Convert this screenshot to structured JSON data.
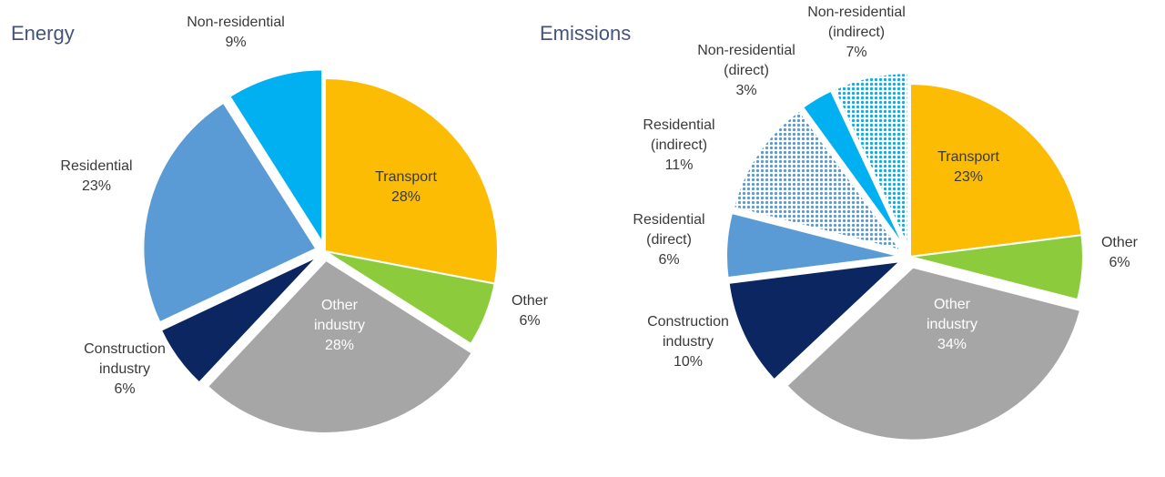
{
  "charts": [
    {
      "title": "Energy",
      "chart_data": {
        "type": "pie",
        "title": "Energy",
        "start_angle_deg": 0,
        "slices": [
          {
            "label": "Transport",
            "value_label": "28%",
            "value": 28,
            "color": "#fcbc03",
            "exploded": false,
            "label_inside": true
          },
          {
            "label": "Other",
            "value_label": "6%",
            "value": 6,
            "color": "#8ccb3c",
            "exploded": false,
            "label_inside": false
          },
          {
            "label": "Other industry",
            "label_lines": [
              "Other",
              "industry"
            ],
            "value_label": "28%",
            "value": 28,
            "color": "#a6a6a6",
            "exploded": true,
            "label_inside": true
          },
          {
            "label": "Construction industry",
            "label_lines": [
              "Construction",
              "industry"
            ],
            "value_label": "6%",
            "value": 6,
            "color": "#0b2661",
            "exploded": true,
            "label_inside": false
          },
          {
            "label": "Residential",
            "value_label": "23%",
            "value": 23,
            "color": "#5b9bd5",
            "exploded": true,
            "label_inside": false
          },
          {
            "label": "Non-residential",
            "value_label": "9%",
            "value": 9,
            "color": "#00b0f0",
            "exploded": true,
            "label_inside": false
          }
        ]
      }
    },
    {
      "title": "Emissions",
      "chart_data": {
        "type": "pie",
        "title": "Emissions",
        "start_angle_deg": 0,
        "slices": [
          {
            "label": "Transport",
            "value_label": "23%",
            "value": 23,
            "color": "#fcbc03",
            "exploded": false,
            "label_inside": true
          },
          {
            "label": "Other",
            "value_label": "6%",
            "value": 6,
            "color": "#8ccb3c",
            "exploded": false,
            "label_inside": false
          },
          {
            "label": "Other industry",
            "label_lines": [
              "Other",
              "industry"
            ],
            "value_label": "34%",
            "value": 34,
            "color": "#a6a6a6",
            "exploded": true,
            "label_inside": true
          },
          {
            "label": "Construction industry",
            "label_lines": [
              "Construction",
              "industry"
            ],
            "value_label": "10%",
            "value": 10,
            "color": "#0b2661",
            "exploded": true,
            "label_inside": false
          },
          {
            "label": "Residential (direct)",
            "label_lines": [
              "Residential",
              "(direct)"
            ],
            "value_label": "6%",
            "value": 6,
            "color": "#5b9bd5",
            "exploded": true,
            "label_inside": false
          },
          {
            "label": "Residential (indirect)",
            "label_lines": [
              "Residential",
              "(indirect)"
            ],
            "value_label": "11%",
            "value": 11,
            "color": "#5b9bd5",
            "pattern": "dots",
            "exploded": true,
            "label_inside": false
          },
          {
            "label": "Non-residential (direct)",
            "label_lines": [
              "Non-residential",
              "(direct)"
            ],
            "value_label": "3%",
            "value": 3,
            "color": "#00b0f0",
            "exploded": true,
            "label_inside": false
          },
          {
            "label": "Non-residential (indirect)",
            "label_lines": [
              "Non-residential",
              "(indirect)"
            ],
            "value_label": "7%",
            "value": 7,
            "color": "#00b0f0",
            "pattern": "dots",
            "exploded": true,
            "label_inside": false
          }
        ]
      }
    }
  ]
}
